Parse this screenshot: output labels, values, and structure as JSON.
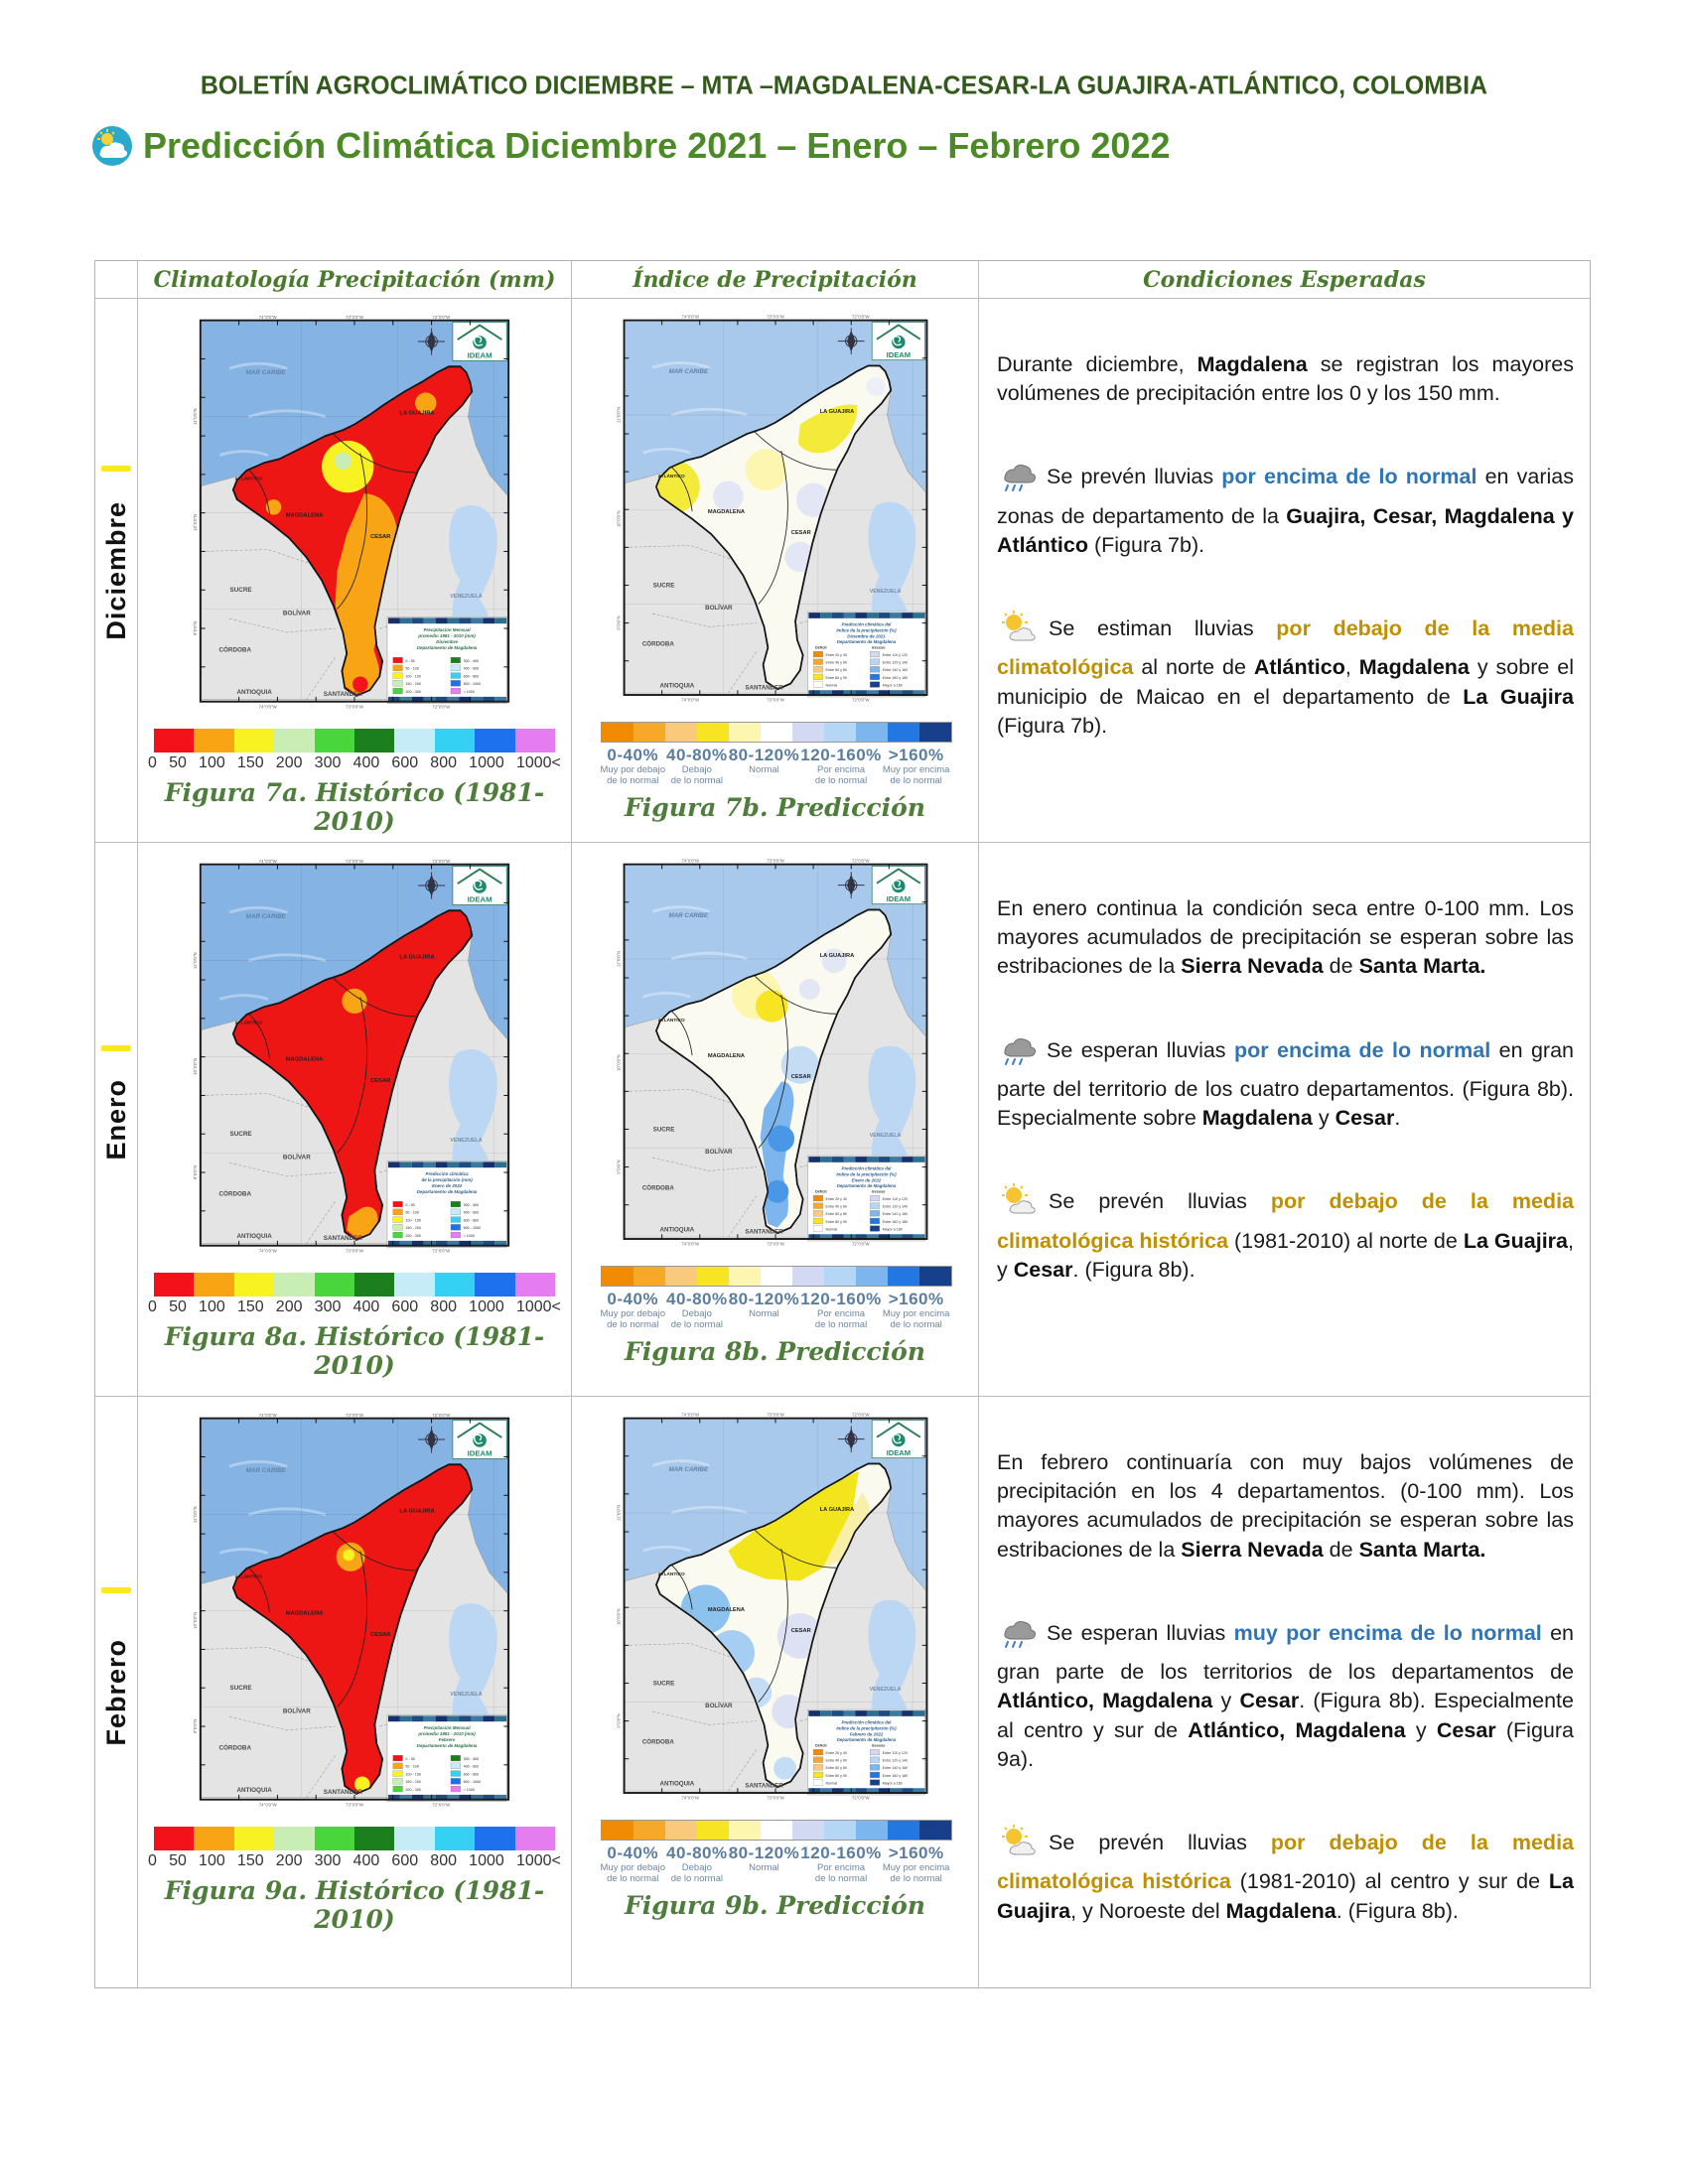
{
  "page": {
    "header": "BOLETÍN AGROCLIMÁTICO DICIEMBRE – MTA –MAGDALENA-CESAR-LA GUAJIRA-ATLÁNTICO, COLOMBIA",
    "title": "Predicción Climática Diciembre 2021 – Enero – Febrero 2022"
  },
  "colors": {
    "header_green": "#33591d",
    "title_green": "#4c8a28",
    "caption_green": "#4e7d3c",
    "above_normal_blue": "#2e75b6",
    "below_normal_gold": "#bf9000",
    "sea_historic": "#85b3e3",
    "sea_prediction": "#a9c9ec",
    "neighbor_land": "#e4e4e4",
    "lake": "#bcd7f3",
    "region_base_historic": "#ee1515",
    "region_base_prediction": "#fbfaf0",
    "highlight_yellow": "#fce91c"
  },
  "table": {
    "columns": [
      "Climatología Precipitación (mm)",
      "Índice de Precipitación",
      "Condiciones Esperadas"
    ]
  },
  "scales": {
    "historic": {
      "colors": [
        "#f3121a",
        "#f8a415",
        "#f9f223",
        "#c9eeb5",
        "#49d63c",
        "#1c7f1e",
        "#c6ecf8",
        "#35d0f2",
        "#1d71ed",
        "#e57cf0"
      ],
      "labels": [
        "0",
        "50",
        "100",
        "150",
        "200",
        "300",
        "400",
        "600",
        "800",
        "1000",
        "1000<"
      ]
    },
    "prediction": {
      "colors": [
        "#f28b04",
        "#f6a829",
        "#f9c97c",
        "#f7e523",
        "#fdf6b0",
        "#ffffff",
        "#d3d9f2",
        "#b5d6f4",
        "#7db5ee",
        "#2277e0",
        "#173f8c"
      ],
      "groups": [
        {
          "pct": "0-40%",
          "sub": [
            "Muy por debajo",
            "de lo normal"
          ]
        },
        {
          "pct": "40-80%",
          "sub": [
            "Debajo",
            "de lo normal"
          ]
        },
        {
          "pct": "80-120%",
          "sub": [
            "Normal",
            ""
          ]
        },
        {
          "pct": "120-160%",
          "sub": [
            "Por encima",
            "de lo normal"
          ]
        },
        {
          "pct": ">160%",
          "sub": [
            "Muy por encima",
            "de lo normal"
          ]
        }
      ]
    }
  },
  "map_common": {
    "sea_label": "MAR CARIBE",
    "logo": "IDEAM",
    "dept_labels": [
      "ATLÁNTICO",
      "MAGDALENA",
      "CESAR",
      "LA GUAJIRA"
    ],
    "neighbor_labels": [
      "SUCRE",
      "BOLÍVAR",
      "CÓRDOBA",
      "ANTIOQUIA",
      "SANTANDER",
      "N. DE SANTANDER",
      "VENEZUELA"
    ],
    "frame_labels_top": [
      "74°0'0\"W",
      "73°0'0\"W",
      "72°0'0\"W"
    ],
    "frame_labels_side": [
      "11°0'0\"N",
      "10°0'0\"N",
      "9°0'0\"N"
    ]
  },
  "legend_swatches": {
    "historic": {
      "left": [
        [
          "0 - 50",
          "#f3121a"
        ],
        [
          "50 - 100",
          "#f8a415"
        ],
        [
          "100 - 150",
          "#f9f223"
        ],
        [
          "150 - 200",
          "#c9eeb5"
        ],
        [
          "200 - 300",
          "#49d63c"
        ]
      ],
      "right": [
        [
          "300 - 400",
          "#1c7f1e"
        ],
        [
          "400 - 600",
          "#c6ecf8"
        ],
        [
          "600 - 800",
          "#35d0f2"
        ],
        [
          "800 - 1000",
          "#1d71ed"
        ],
        [
          "> 1000",
          "#e57cf0"
        ]
      ]
    },
    "prediction": {
      "headers": [
        "Déficit",
        "Exceso"
      ],
      "left": [
        [
          "Entre 20 y 40",
          "#f28b04"
        ],
        [
          "Entre 40 y 60",
          "#f6a829"
        ],
        [
          "Entre 60 y 80",
          "#f9c97c"
        ],
        [
          "Entre 80 y 90",
          "#f7e523"
        ],
        [
          "Normal",
          "#ffffff"
        ]
      ],
      "right": [
        [
          "Entre 110 y 120",
          "#d3d9f2"
        ],
        [
          "Entre 120 y 140",
          "#b5d6f4"
        ],
        [
          "Entre 140 y 160",
          "#7db5ee"
        ],
        [
          "Entre 160 y 180",
          "#2277e0"
        ],
        [
          "Mayor a 180",
          "#173f8c"
        ]
      ]
    }
  },
  "rows": [
    {
      "label": "Diciembre",
      "maps": [
        {
          "id": "dic_hist",
          "type": "historic",
          "caption": "Figura 7a. Histórico (1981-2010)",
          "legend_title": [
            "Precipitación Mensual",
            "promedio 1981 - 2010 (mm)",
            "Diciembre",
            "Departamento de Magdalena"
          ]
        },
        {
          "id": "dic_pred",
          "type": "prediction",
          "caption": "Figura 7b. Predicción",
          "legend_title": [
            "Predicción climática del",
            "índice de la precipitación (%)",
            "Diciembre de 2021",
            "Departamento de Magdalena"
          ]
        }
      ],
      "paragraphs": [
        {
          "icon": null,
          "segments": [
            {
              "t": "Durante diciembre, ",
              "s": "n"
            },
            {
              "t": "Magdalena",
              "s": "b"
            },
            {
              "t": " se registran los mayores volúmenes de precipitación entre los 0 y los 150 mm.",
              "s": "n"
            }
          ]
        },
        {
          "icon": "rain",
          "segments": [
            {
              "t": "Se prevén lluvias ",
              "s": "n"
            },
            {
              "t": "por encima de lo normal",
              "s": "blue"
            },
            {
              "t": " en varias zonas de departamento de la ",
              "s": "n"
            },
            {
              "t": "Guajira, Cesar, Magdalena y Atlántico",
              "s": "b"
            },
            {
              "t": " (Figura 7b).",
              "s": "n"
            }
          ]
        },
        {
          "icon": "suncloud",
          "segments": [
            {
              "t": "Se estiman lluvias ",
              "s": "n"
            },
            {
              "t": "por debajo de la media climatológica",
              "s": "gold"
            },
            {
              "t": " al norte de ",
              "s": "n"
            },
            {
              "t": "Atlántico",
              "s": "b"
            },
            {
              "t": ", ",
              "s": "n"
            },
            {
              "t": "Magdalena",
              "s": "b"
            },
            {
              "t": " y sobre el municipio de Maicao en el departamento de ",
              "s": "n"
            },
            {
              "t": "La Guajira",
              "s": "b"
            },
            {
              "t": " (Figura 7b).",
              "s": "n"
            }
          ]
        }
      ]
    },
    {
      "label": "Enero",
      "maps": [
        {
          "id": "ene_hist",
          "type": "historic",
          "caption": "Figura 8a. Histórico (1981-2010)",
          "legend_title": [
            "Predicción climática",
            "de la precipitación (mm)",
            "Enero de 2022",
            "Departamento de Magdalena"
          ]
        },
        {
          "id": "ene_pred",
          "type": "prediction",
          "caption": "Figura 8b. Predicción",
          "legend_title": [
            "Predicción climática del",
            "índice de la precipitación (%)",
            "Enero de 2022",
            "Departamento de Magdalena"
          ]
        }
      ],
      "paragraphs": [
        {
          "icon": null,
          "segments": [
            {
              "t": "En enero continua la condición seca entre 0-100 mm. Los mayores acumulados de precipitación se esperan sobre las estribaciones de la ",
              "s": "n"
            },
            {
              "t": "Sierra Nevada",
              "s": "b"
            },
            {
              "t": " de ",
              "s": "n"
            },
            {
              "t": "Santa Marta.",
              "s": "b"
            }
          ]
        },
        {
          "icon": "rain",
          "segments": [
            {
              "t": "Se esperan lluvias ",
              "s": "n"
            },
            {
              "t": "por encima de lo normal",
              "s": "blue"
            },
            {
              "t": " en gran parte del territorio de los cuatro departamentos. (Figura 8b). Especialmente sobre ",
              "s": "n"
            },
            {
              "t": "Magdalena",
              "s": "b"
            },
            {
              "t": " y ",
              "s": "n"
            },
            {
              "t": "Cesar",
              "s": "b"
            },
            {
              "t": ".",
              "s": "n"
            }
          ]
        },
        {
          "icon": "suncloud",
          "segments": [
            {
              "t": "Se prevén lluvias ",
              "s": "n"
            },
            {
              "t": "por debajo de la media climatológica histórica",
              "s": "gold"
            },
            {
              "t": " (1981-2010) al norte de ",
              "s": "n"
            },
            {
              "t": "La Guajira",
              "s": "b"
            },
            {
              "t": ", y ",
              "s": "n"
            },
            {
              "t": "Cesar",
              "s": "b"
            },
            {
              "t": ". (Figura 8b).",
              "s": "n"
            }
          ]
        }
      ]
    },
    {
      "label": "Febrero",
      "maps": [
        {
          "id": "feb_hist",
          "type": "historic",
          "caption": "Figura 9a. Histórico (1981-2010)",
          "legend_title": [
            "Precipitación Mensual",
            "promedio 1981 - 2010 (mm)",
            "Febrero",
            "Departamento de Magdalena"
          ]
        },
        {
          "id": "feb_pred",
          "type": "prediction",
          "caption": "Figura 9b. Predicción",
          "legend_title": [
            "Predicción climática del",
            "índice de la precipitación (%)",
            "Febrero de 2022",
            "Departamento de Magdalena"
          ]
        }
      ],
      "paragraphs": [
        {
          "icon": null,
          "segments": [
            {
              "t": "En febrero continuaría con muy bajos volúmenes de precipitación en los 4 departamentos. (0-100 mm). Los mayores acumulados de precipitación se esperan sobre las estribaciones de la ",
              "s": "n"
            },
            {
              "t": "Sierra Nevada",
              "s": "b"
            },
            {
              "t": " de ",
              "s": "n"
            },
            {
              "t": "Santa Marta.",
              "s": "b"
            }
          ]
        },
        {
          "icon": "rain",
          "segments": [
            {
              "t": "Se esperan lluvias ",
              "s": "n"
            },
            {
              "t": "muy por encima de lo normal",
              "s": "blue"
            },
            {
              "t": " en gran parte de los territorios de los departamentos de ",
              "s": "n"
            },
            {
              "t": "Atlántico, Magdalena",
              "s": "b"
            },
            {
              "t": " y ",
              "s": "n"
            },
            {
              "t": "Cesar",
              "s": "b"
            },
            {
              "t": ". (Figura 8b). Especialmente al centro y sur de ",
              "s": "n"
            },
            {
              "t": "Atlántico, Magdalena",
              "s": "b"
            },
            {
              "t": " y ",
              "s": "n"
            },
            {
              "t": "Cesar",
              "s": "b"
            },
            {
              "t": " (Figura 9a).",
              "s": "n"
            }
          ]
        },
        {
          "icon": "suncloud",
          "segments": [
            {
              "t": "Se prevén lluvias ",
              "s": "n"
            },
            {
              "t": "por debajo de la media climatológica histórica",
              "s": "gold"
            },
            {
              "t": " (1981-2010) al centro y sur de ",
              "s": "n"
            },
            {
              "t": "La Guajira",
              "s": "b"
            },
            {
              "t": ", y Noroeste del ",
              "s": "n"
            },
            {
              "t": "Magdalena",
              "s": "b"
            },
            {
              "t": ". (Figura 8b).",
              "s": "n"
            }
          ]
        }
      ]
    }
  ]
}
